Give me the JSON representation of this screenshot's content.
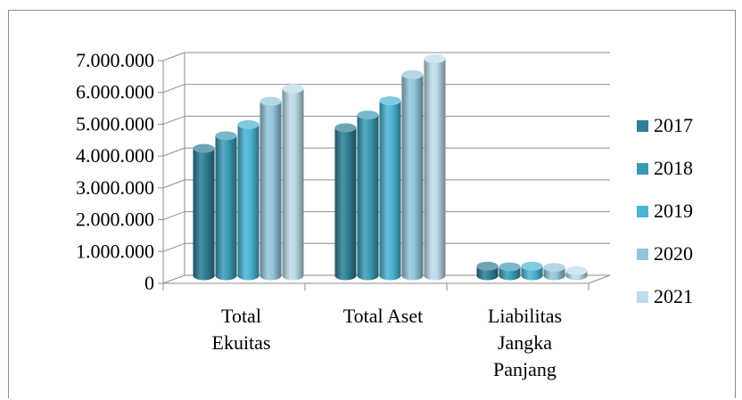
{
  "chart_data": {
    "type": "bar",
    "style": "3d-cylinder",
    "categories": [
      [
        "Total",
        "Ekuitas"
      ],
      [
        "Total Aset"
      ],
      [
        "Liabilitas",
        "Jangka",
        "Panjang"
      ]
    ],
    "series": [
      {
        "name": "2017",
        "color": "#2f7e95",
        "values": [
          4000000,
          4650000,
          300000
        ]
      },
      {
        "name": "2018",
        "color": "#3a9bb5",
        "values": [
          4400000,
          5050000,
          280000
        ]
      },
      {
        "name": "2019",
        "color": "#4ab5d3",
        "values": [
          4750000,
          5500000,
          300000
        ]
      },
      {
        "name": "2020",
        "color": "#93c6db",
        "values": [
          5480000,
          6320000,
          260000
        ]
      },
      {
        "name": "2021",
        "color": "#bcdcea",
        "values": [
          5880000,
          6820000,
          160000
        ]
      }
    ],
    "yticks": [
      "0",
      "1.000.000",
      "2.000.000",
      "3.000.000",
      "4.000.000",
      "5.000.000",
      "6.000.000",
      "7.000.000"
    ],
    "ylim": [
      0,
      7000000
    ],
    "title": "",
    "xlabel": "",
    "ylabel": "",
    "grid": true,
    "legend": "right"
  }
}
